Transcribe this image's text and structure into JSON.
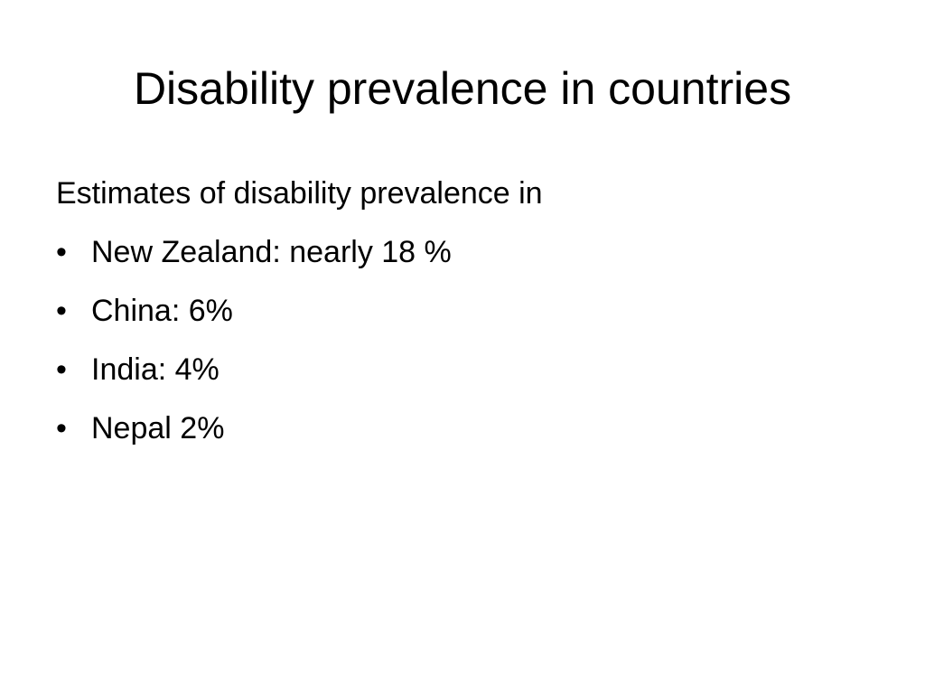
{
  "slide": {
    "title": "Disability prevalence in countries",
    "intro": "Estimates of disability prevalence in",
    "bullet_symbol": "•",
    "bullets": [
      "New Zealand: nearly 18 %",
      "China: 6%",
      "India: 4%",
      "Nepal 2%"
    ]
  }
}
